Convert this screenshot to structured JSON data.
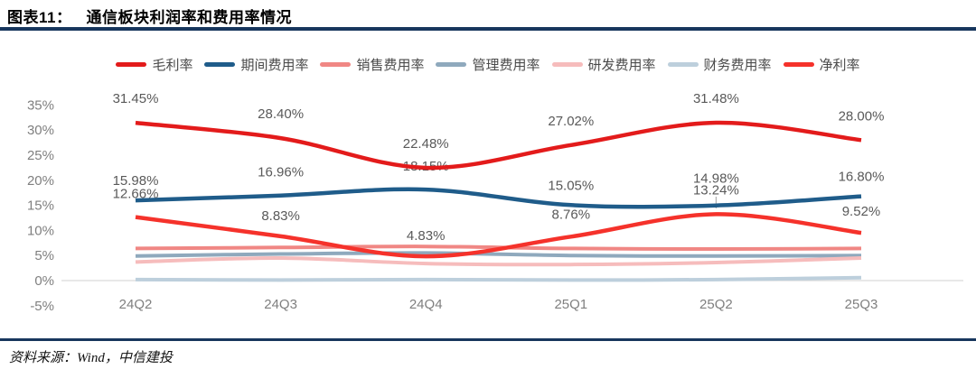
{
  "header": {
    "figure_label": "图表11：",
    "title": "通信板块利润率和费用率情况"
  },
  "footer": {
    "source": "资料来源：Wind，中信建投"
  },
  "colors": {
    "divider": "#17365d",
    "gridline": "#d9d9d9",
    "axis_text": "#7f7f7f",
    "data_label_text": "#595959",
    "leader_line": "#b0b0b0"
  },
  "chart_data": {
    "type": "line",
    "title": "通信板块利润率和费用率情况",
    "categories": [
      "24Q2",
      "24Q3",
      "24Q4",
      "25Q1",
      "25Q2",
      "25Q3"
    ],
    "y_ticks": [
      35,
      30,
      25,
      20,
      15,
      10,
      5,
      0,
      -5
    ],
    "ylim": [
      -5,
      35
    ],
    "grid": "zero-line-only",
    "legend_position": "top",
    "xlabel": "",
    "ylabel": "",
    "series": [
      {
        "name": "毛利率",
        "color": "#e31b1b",
        "labeled": true,
        "values": [
          31.45,
          28.4,
          22.48,
          27.02,
          31.48,
          28.0
        ]
      },
      {
        "name": "期间费用率",
        "color": "#1f5c8a",
        "labeled": true,
        "values": [
          15.98,
          16.96,
          18.15,
          15.05,
          14.98,
          16.8
        ]
      },
      {
        "name": "销售费用率",
        "color": "#f08784",
        "labeled": false,
        "values": [
          6.4,
          6.6,
          6.8,
          6.4,
          6.3,
          6.4
        ]
      },
      {
        "name": "管理费用率",
        "color": "#8fa9bd",
        "labeled": false,
        "values": [
          4.9,
          5.3,
          5.5,
          5.0,
          4.9,
          5.0
        ]
      },
      {
        "name": "研发费用率",
        "color": "#f6bcbc",
        "labeled": false,
        "values": [
          3.7,
          4.5,
          3.4,
          3.2,
          3.6,
          4.5
        ]
      },
      {
        "name": "财务费用率",
        "color": "#bdcfdc",
        "labeled": false,
        "values": [
          0.2,
          0.1,
          0.2,
          0.1,
          0.2,
          0.6
        ]
      },
      {
        "name": "净利率",
        "color": "#f5322b",
        "labeled": true,
        "values": [
          12.66,
          8.83,
          4.83,
          8.76,
          13.24,
          9.52
        ]
      }
    ]
  }
}
